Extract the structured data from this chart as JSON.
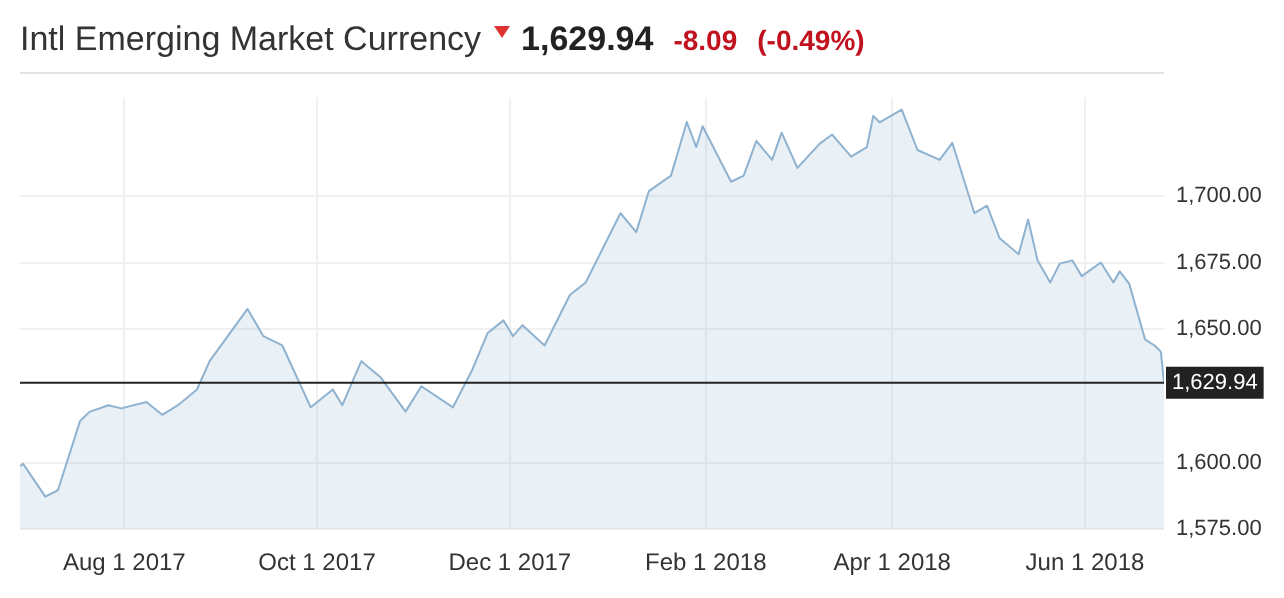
{
  "chart_data": {
    "type": "area",
    "title": "Intl Emerging Market Currency",
    "annotations": [
      "1,629.94",
      "-8.09",
      "(-0.49%)"
    ],
    "x": [
      "2017-06-29",
      "2017-06-30",
      "2017-07-07",
      "2017-07-11",
      "2017-07-18",
      "2017-07-21",
      "2017-07-27",
      "2017-07-31",
      "2017-08-08",
      "2017-08-13",
      "2017-08-18",
      "2017-08-24",
      "2017-08-28",
      "2017-09-02",
      "2017-09-09",
      "2017-09-14",
      "2017-09-20",
      "2017-09-29",
      "2017-10-06",
      "2017-10-09",
      "2017-10-15",
      "2017-10-21",
      "2017-10-29",
      "2017-11-03",
      "2017-11-13",
      "2017-11-19",
      "2017-11-24",
      "2017-11-29",
      "2017-12-02",
      "2017-12-05",
      "2017-12-12",
      "2017-12-20",
      "2017-12-25",
      "2018-01-05",
      "2018-01-10",
      "2018-01-14",
      "2018-01-21",
      "2018-01-26",
      "2018-01-29",
      "2018-01-31",
      "2018-02-09",
      "2018-02-13",
      "2018-02-17",
      "2018-02-22",
      "2018-02-25",
      "2018-03-02",
      "2018-03-09",
      "2018-03-13",
      "2018-03-19",
      "2018-03-24",
      "2018-03-26",
      "2018-03-28",
      "2018-04-04",
      "2018-04-09",
      "2018-04-16",
      "2018-04-20",
      "2018-04-27",
      "2018-05-01",
      "2018-05-05",
      "2018-05-11",
      "2018-05-14",
      "2018-05-17",
      "2018-05-21",
      "2018-05-24",
      "2018-05-28",
      "2018-05-31",
      "2018-06-06",
      "2018-06-10",
      "2018-06-12",
      "2018-06-15",
      "2018-06-20",
      "2018-06-23",
      "2018-06-25",
      "2018-06-26"
    ],
    "series": [
      {
        "color": "#8eb2d0",
        "values": [
          1598.6,
          1599.5,
          1587.2,
          1589.6,
          1615.6,
          1619,
          1621.5,
          1620.3,
          1622.7,
          1617.9,
          1621.5,
          1627.4,
          1638,
          1646.2,
          1657.6,
          1647.4,
          1643.9,
          1620.7,
          1627.4,
          1621.5,
          1638,
          1632.1,
          1619.1,
          1628.6,
          1620.7,
          1634.5,
          1648.6,
          1653.3,
          1647.4,
          1651.5,
          1643.9,
          1662.8,
          1667.5,
          1693.5,
          1686.4,
          1701.8,
          1707.6,
          1727.7,
          1718.3,
          1726.1,
          1705.3,
          1707.6,
          1720.6,
          1713.5,
          1723.7,
          1710.5,
          1719.5,
          1723,
          1714.7,
          1718.3,
          1730,
          1727.6,
          1732.3,
          1717.2,
          1713.5,
          1719.9,
          1693.5,
          1696.3,
          1684.1,
          1678.1,
          1691.1,
          1675.8,
          1667.5,
          1674.6,
          1675.8,
          1669.9,
          1675,
          1667.5,
          1671.7,
          1667,
          1646.2,
          1643.9,
          1641.6,
          1629.94
        ]
      }
    ],
    "xlim": [
      "2017-06-29",
      "2018-06-26"
    ],
    "xticks": [
      {
        "value": "2017-08-01",
        "label": "Aug 1 2017"
      },
      {
        "value": "2017-10-01",
        "label": "Oct 1 2017"
      },
      {
        "value": "2017-12-01",
        "label": "Dec 1 2017"
      },
      {
        "value": "2018-02-01",
        "label": "Feb 1 2018"
      },
      {
        "value": "2018-04-01",
        "label": "Apr 1 2018"
      },
      {
        "value": "2018-06-01",
        "label": "Jun 1 2018"
      }
    ],
    "ylim": [
      1575,
      1737
    ],
    "yticks": [
      {
        "value": 1575,
        "label": "1,575.00"
      },
      {
        "value": 1600,
        "label": "1,600.00"
      },
      {
        "value": 1650,
        "label": "1,650.00"
      },
      {
        "value": 1675,
        "label": "1,675.00"
      },
      {
        "value": 1700,
        "label": "1,700.00"
      }
    ],
    "ref_lines": [
      {
        "axis": "y",
        "value": 1629.94,
        "label": "1,629.94",
        "color": "#222222"
      }
    ],
    "grid": true,
    "legend": false
  }
}
